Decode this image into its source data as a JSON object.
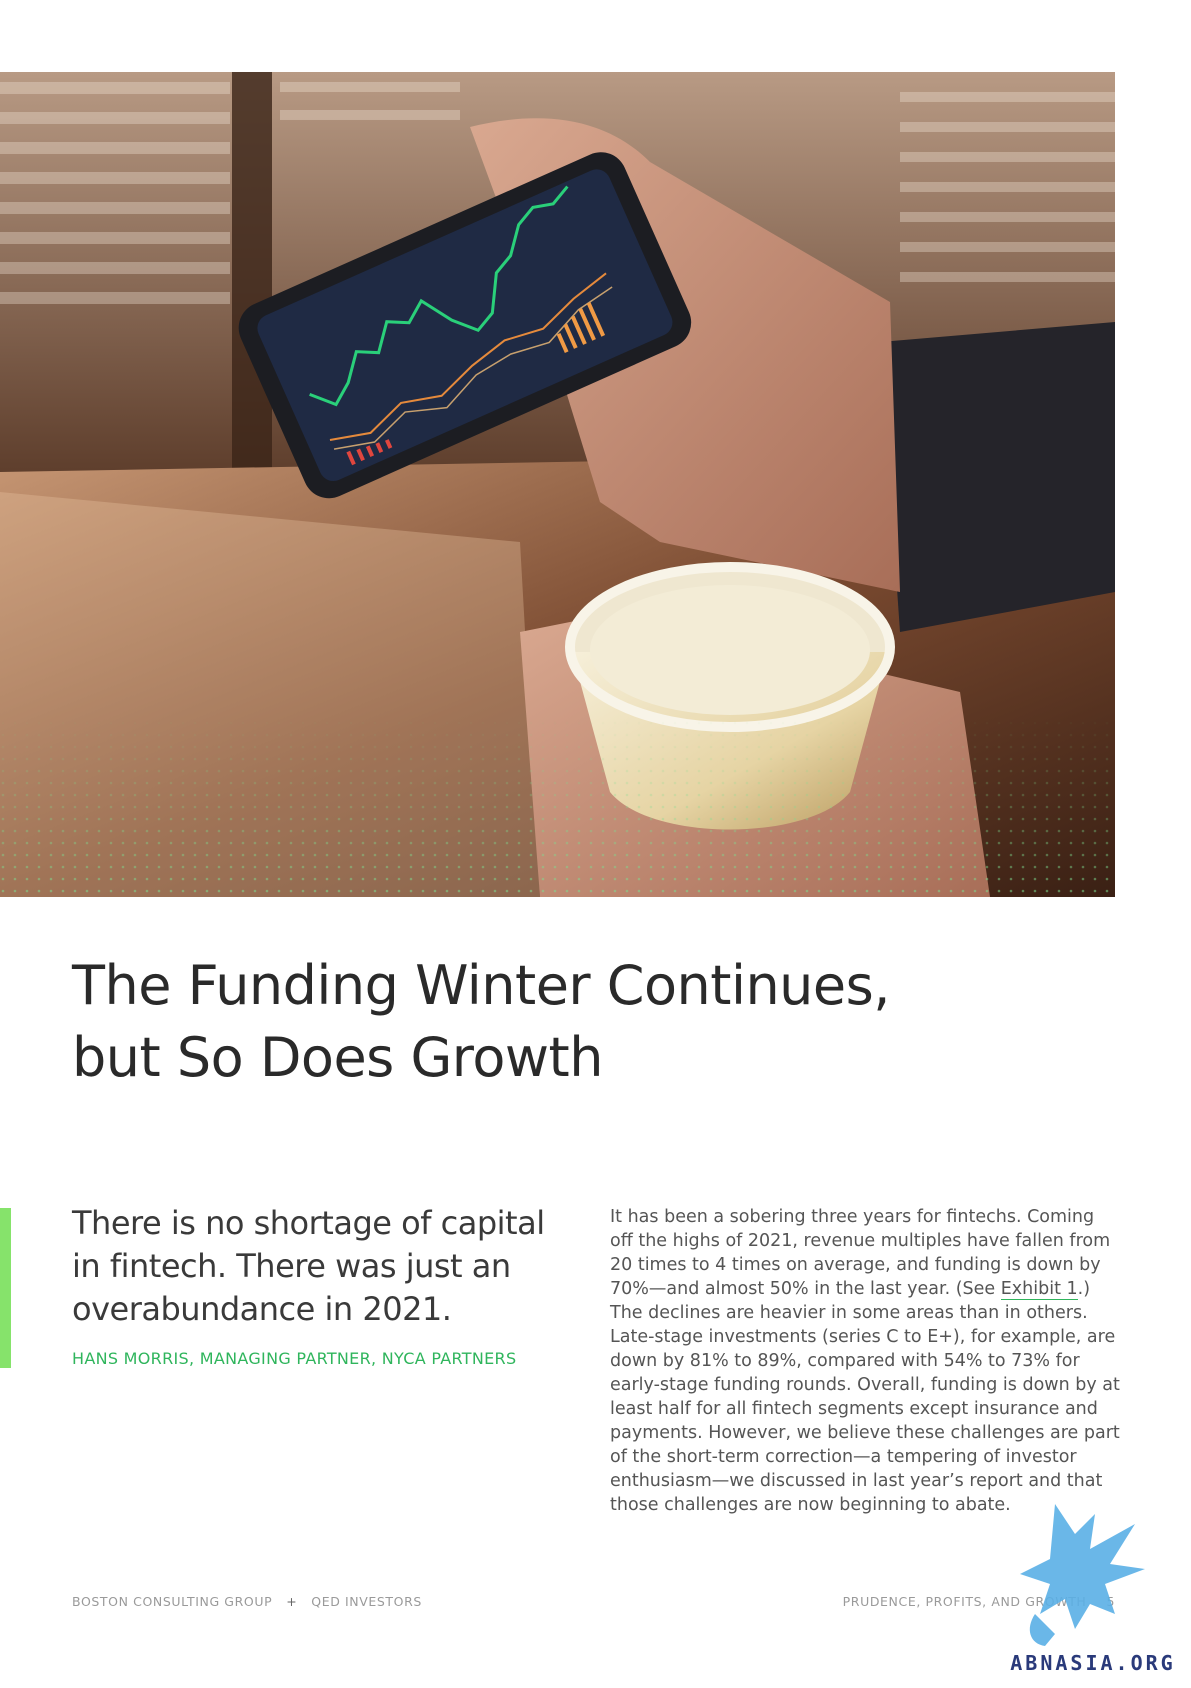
{
  "hero": {
    "image_description_icon": "hand-holding-phone-with-stock-chart-and-paper-cup-photo-icon"
  },
  "article": {
    "title_line1": "The Funding Winter Continues,",
    "title_line2": "but So Does Growth"
  },
  "pullquote": {
    "text": "There is no shortage of capital in fintech. There was just an overabundance in 2021.",
    "attribution": "HANS MORRIS, MANAGING PARTNER, NYCA PARTNERS"
  },
  "body": {
    "part1": "It has been a sobering three years for fintechs. Coming off the highs of 2021, revenue multiples have fallen from 20 times to 4 times on average, and funding is down by 70%—and almost 50% in the last year. (See ",
    "link": "Exhibit 1",
    "part2": ".) The declines are heavier in some areas than in others. Late-stage investments (series C to E+), for example, are down by 81% to 89%, compared with 54% to 73% for early-stage funding rounds. Overall, funding is down by at least half for all fintech segments except insurance and payments. However, we believe these challenges are part of the short-term correction—a tempering of investor enthusiasm—we discussed in last year’s report and that those challenges are now beginning to abate."
  },
  "footer": {
    "left_org1": "BOSTON CONSULTING GROUP",
    "separator": "+",
    "left_org2": "QED INVESTORS",
    "report_title": "PRUDENCE, PROFITS, AND GROWTH",
    "page_number": "5"
  },
  "watermark": {
    "text": "ABNASIA.ORG",
    "icon": "griffin-logo-icon"
  },
  "colors": {
    "accent_green": "#2fb55c",
    "bar_green": "#86e36b",
    "title": "#2a2a2a"
  }
}
